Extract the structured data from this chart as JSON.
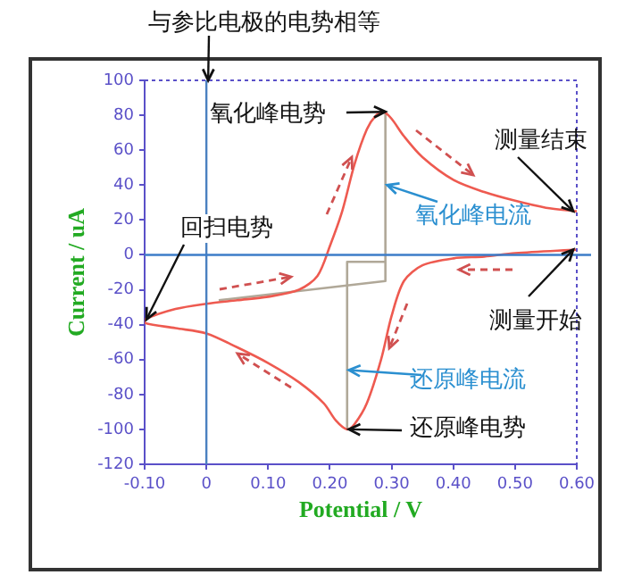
{
  "chart_data": {
    "type": "line",
    "xlabel": "Potential / V",
    "ylabel": "Current / uA",
    "xlim": [
      -0.1,
      0.6
    ],
    "xticks": [
      {
        "value": -0.1,
        "label": "-0.10"
      },
      0,
      {
        "value": 0.1,
        "label": "0.10"
      },
      {
        "value": 0.2,
        "label": "0.20"
      },
      {
        "value": 0.3,
        "label": "0.30"
      },
      {
        "value": 0.4,
        "label": "0.40"
      },
      {
        "value": 0.5,
        "label": "0.50"
      },
      {
        "value": 0.6,
        "label": "0.60"
      }
    ],
    "ylim": [
      -120,
      100
    ],
    "yticks": [
      -120,
      -100,
      -80,
      -60,
      -40,
      -20,
      0,
      20,
      40,
      60,
      80,
      100
    ],
    "grid": false,
    "legend": false,
    "marker": "none",
    "line_style": "solid",
    "series": [
      {
        "type": "line",
        "color": "#ee5a50",
        "x": [
          0.6,
          0.5,
          0.45,
          0.4,
          0.35,
          0.32,
          0.3,
          0.283,
          0.26,
          0.24,
          0.228,
          0.21,
          0.19,
          0.15,
          0.1,
          0.05,
          0,
          -0.05,
          -0.1,
          -0.1,
          -0.05,
          0,
          0.05,
          0.1,
          0.15,
          0.18,
          0.2,
          0.22,
          0.24,
          0.26,
          0.275,
          0.287,
          0.3,
          0.32,
          0.35,
          0.4,
          0.45,
          0.5,
          0.55,
          0.6
        ],
        "values": [
          3,
          1,
          -1,
          -2,
          -6,
          -15,
          -35,
          -60,
          -85,
          -97,
          -100,
          -95,
          -85,
          -73,
          -62,
          -53,
          -45,
          -42,
          -39,
          -37,
          -31,
          -28,
          -26,
          -24,
          -20,
          -12,
          5,
          25,
          52,
          72,
          80,
          82,
          78,
          68,
          56,
          43,
          36,
          31,
          27,
          25
        ]
      },
      {
        "type": "line",
        "color": "#b0a898",
        "x": [
          0.02,
          0.29,
          0.29
        ],
        "values": [
          -26,
          -15,
          82
        ]
      },
      {
        "type": "line",
        "color": "#b0a898",
        "x": [
          0.228,
          0.228,
          0.29
        ],
        "values": [
          -100,
          -4,
          -4
        ]
      }
    ],
    "ref_lines": [
      {
        "axis": "x",
        "value": 0,
        "color": "#4a80c0"
      },
      {
        "axis": "y",
        "value": 0,
        "color": "#3c7cc8"
      }
    ],
    "annotations": [
      {
        "text": "与参比电极的电势相等",
        "x": 0,
        "y": 100
      },
      {
        "text": "氧化峰电势",
        "x": 0.287,
        "y": 82
      },
      {
        "text": "测量结束",
        "x": 0.6,
        "y": 25
      },
      {
        "text": "氧化峰电流",
        "x": 0.29,
        "y": 40
      },
      {
        "text": "回扫电势",
        "x": -0.1,
        "y": -37
      },
      {
        "text": "测量开始",
        "x": 0.6,
        "y": 3
      },
      {
        "text": "还原峰电流",
        "x": 0.228,
        "y": -66
      },
      {
        "text": "还原峰电势",
        "x": 0.228,
        "y": -100
      }
    ]
  }
}
